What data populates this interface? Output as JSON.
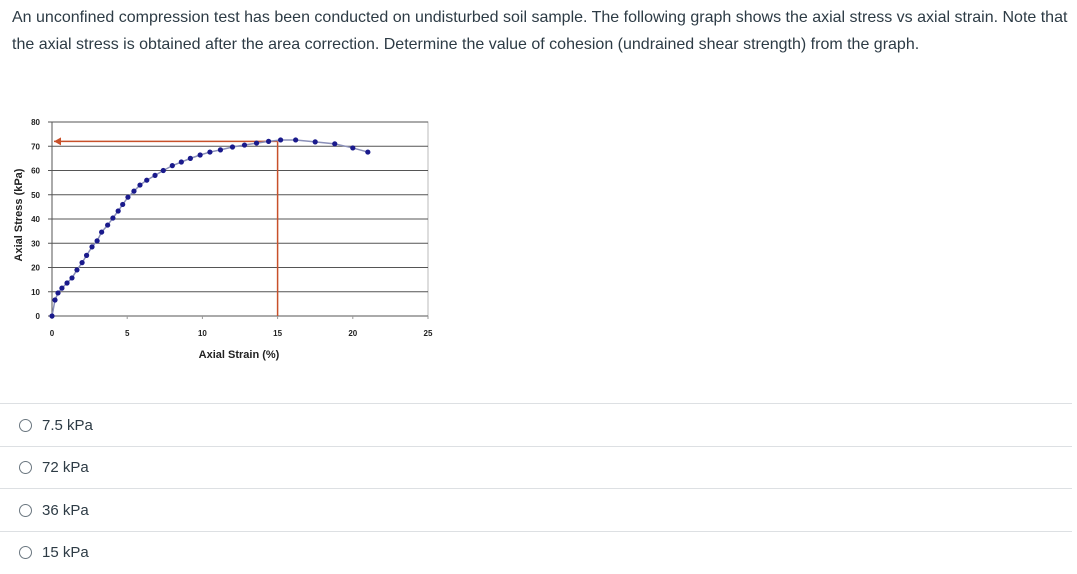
{
  "question": {
    "text": "An unconfined compression test has been conducted on undisturbed soil sample. The following graph shows the axial stress vs axial strain. Note that the axial stress is obtained after the area correction. Determine the value of cohesion (undrained shear strength) from the graph."
  },
  "chart_data": {
    "type": "line",
    "xlabel": "Axial Strain (%)",
    "ylabel": "Axial Stress (kPa)",
    "x": [
      0,
      0.2,
      0.4,
      0.66,
      1.0,
      1.33,
      1.66,
      2.0,
      2.3,
      2.66,
      3.0,
      3.3,
      3.7,
      4.05,
      4.4,
      4.7,
      5.05,
      5.45,
      5.85,
      6.3,
      6.85,
      7.4,
      8.0,
      8.6,
      9.2,
      9.85,
      10.5,
      11.2,
      12.0,
      12.8,
      13.6,
      14.4,
      15.2,
      16.2,
      17.5,
      18.8,
      20.0,
      21.0
    ],
    "series": [
      {
        "color": "#1a1a8c",
        "values": [
          0,
          6.6,
          9.5,
          11.5,
          13.6,
          15.7,
          19,
          22,
          25,
          28.5,
          31,
          34.6,
          37.5,
          40.4,
          43.3,
          46,
          49,
          51.5,
          54,
          56,
          58,
          60,
          62,
          63.5,
          65,
          66.4,
          67.6,
          68.5,
          69.7,
          70.5,
          71.3,
          72,
          72.6,
          72.6,
          71.8,
          71,
          69.3,
          67.6
        ]
      }
    ],
    "xlim": [
      0,
      25
    ],
    "ylim": [
      0,
      80
    ],
    "xticks": [
      0,
      5,
      10,
      15,
      20,
      25
    ],
    "yticks": [
      0,
      10,
      20,
      30,
      40,
      50,
      60,
      70,
      80
    ],
    "grid": true,
    "reference_point": {
      "x": 15,
      "y": 72,
      "color": "#c8502a"
    }
  },
  "options": [
    "7.5 kPa",
    "72 kPa",
    "36 kPa",
    "15 kPa"
  ]
}
